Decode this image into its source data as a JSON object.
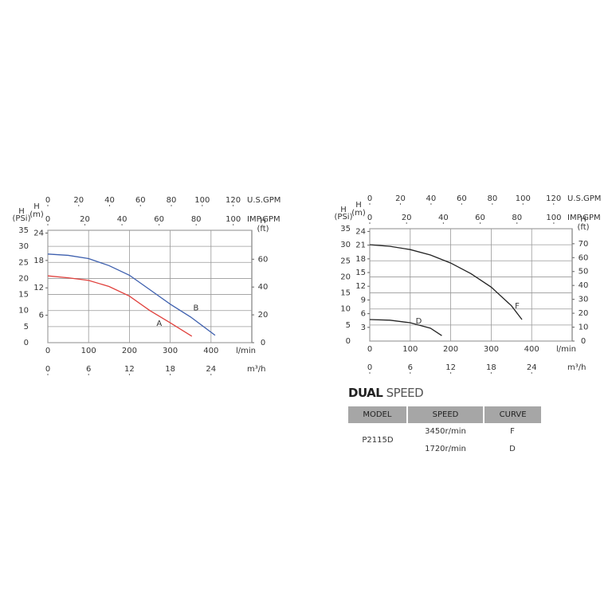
{
  "chart_data": [
    {
      "type": "line",
      "xlabel": "l/min",
      "ylabel": [
        "H",
        "(PSi)"
      ],
      "xlim": [
        0,
        500
      ],
      "xticks": [
        0,
        100,
        200,
        300,
        400
      ],
      "ylim": [
        0,
        35
      ],
      "yticks": [
        0,
        5,
        10,
        15,
        20,
        25,
        30,
        35
      ],
      "grid": true,
      "axes": [
        {
          "side": "left",
          "label": [
            "H",
            "(m)"
          ],
          "lim": [
            0,
            24.6
          ],
          "ticks": [
            6,
            12,
            18,
            24
          ]
        },
        {
          "side": "right",
          "label": [
            "H",
            "(ft)"
          ],
          "lim": [
            0,
            80.8
          ],
          "ticks": [
            0,
            20,
            40,
            60
          ]
        },
        {
          "side": "top",
          "label": "U.S.GPM",
          "lim": [
            0,
            132.1
          ],
          "ticks": [
            0,
            20,
            40,
            60,
            80,
            100,
            120
          ]
        },
        {
          "side": "top",
          "label": "IMP.GPM",
          "lim": [
            0,
            110
          ],
          "ticks": [
            0,
            20,
            40,
            60,
            80,
            100
          ]
        },
        {
          "side": "bottom",
          "label": "m³/h",
          "lim": [
            0,
            30
          ],
          "ticks": [
            0,
            6,
            12,
            18,
            24
          ]
        }
      ],
      "series": [
        {
          "name": "A",
          "color": "#e0403c",
          "x": [
            0,
            50,
            100,
            150,
            200,
            250,
            300,
            353
          ],
          "values": [
            20.8,
            20.2,
            19.4,
            17.5,
            14.5,
            10,
            6.2,
            2
          ]
        },
        {
          "name": "B",
          "color": "#3d5fae",
          "x": [
            0,
            50,
            100,
            150,
            200,
            250,
            300,
            350,
            410
          ],
          "values": [
            27.6,
            27.2,
            26.2,
            24,
            21,
            16.5,
            12,
            8,
            2.3
          ]
        }
      ]
    },
    {
      "type": "line",
      "xlabel": "l/min",
      "ylabel": [
        "H",
        "(PSi)"
      ],
      "xlim": [
        0,
        500
      ],
      "xticks": [
        0,
        100,
        200,
        300,
        400
      ],
      "ylim": [
        0,
        35
      ],
      "yticks": [
        0,
        5,
        10,
        15,
        20,
        25,
        30,
        35
      ],
      "grid": true,
      "axes": [
        {
          "side": "left",
          "label": [
            "H",
            "(m)"
          ],
          "lim": [
            0,
            24.6
          ],
          "ticks": [
            3,
            6,
            9,
            12,
            15,
            18,
            21,
            24
          ]
        },
        {
          "side": "right",
          "label": [
            "H",
            "(ft)"
          ],
          "lim": [
            0,
            80.8
          ],
          "ticks": [
            0,
            10,
            20,
            30,
            40,
            50,
            60,
            70
          ]
        },
        {
          "side": "top",
          "label": "U.S.GPM",
          "lim": [
            0,
            132.1
          ],
          "ticks": [
            0,
            20,
            40,
            60,
            80,
            100,
            120
          ]
        },
        {
          "side": "top",
          "label": "IMP.GPM",
          "lim": [
            0,
            110
          ],
          "ticks": [
            0,
            20,
            40,
            60,
            80,
            100
          ]
        },
        {
          "side": "bottom",
          "label": "m³/h",
          "lim": [
            0,
            30
          ],
          "ticks": [
            0,
            6,
            12,
            18,
            24
          ]
        }
      ],
      "series": [
        {
          "name": "F",
          "color": "#222222",
          "x": [
            0,
            50,
            100,
            150,
            200,
            250,
            300,
            350,
            376
          ],
          "values": [
            30,
            29.5,
            28.5,
            26.8,
            24.3,
            21,
            16.8,
            11,
            6.7
          ]
        },
        {
          "name": "D",
          "color": "#222222",
          "x": [
            0,
            50,
            100,
            150,
            178
          ],
          "values": [
            6.7,
            6.5,
            5.7,
            4,
            1.7
          ]
        }
      ]
    }
  ],
  "table": {
    "title": [
      "DUAL",
      "SPEED"
    ],
    "header": [
      "MODEL",
      "SPEED",
      "CURVE"
    ],
    "model": "P2115D",
    "rows": [
      [
        "3450r/min",
        "F"
      ],
      [
        "1720r/min",
        "D"
      ]
    ]
  }
}
